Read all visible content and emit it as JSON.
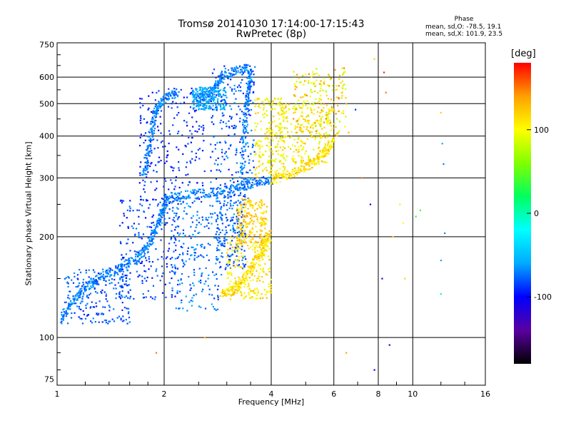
{
  "chart_data": {
    "type": "scatter",
    "title": "Tromsø 20141030 17:14:00-17:15:43",
    "subtitle": "RwPretec (8p)",
    "xlabel": "Frequency [MHz]",
    "ylabel": "Stationary phase Virtual Height [km]",
    "x_scale": "log",
    "y_scale": "log",
    "xlim": [
      1,
      16
    ],
    "ylim": [
      72,
      760
    ],
    "x_ticks": [
      1,
      2,
      4,
      6,
      8,
      10,
      16
    ],
    "x_tick_labels": [
      "1",
      "2",
      "4",
      "6",
      "8",
      "10",
      "16"
    ],
    "y_ticks": [
      75,
      100,
      200,
      300,
      400,
      500,
      600,
      750
    ],
    "y_tick_labels": [
      "75",
      "100",
      "200",
      "300",
      "400",
      "500",
      "600",
      "750"
    ],
    "grid": true,
    "phase_stats": {
      "heading": "Phase",
      "o_mode": "mean, sd,O: -78.5, 19.1",
      "x_mode": "mean, sd,X: 101.9, 23.5"
    },
    "colorbar": {
      "unit": "[deg]",
      "range": [
        -180,
        180
      ],
      "tick_values": [
        100,
        0,
        -100
      ],
      "tick_labels": [
        "100",
        "0",
        "-100"
      ],
      "colors": [
        "#000000",
        "#5a00a0",
        "#0000ff",
        "#00aaff",
        "#00ffff",
        "#00ff60",
        "#80ff00",
        "#ffff00",
        "#ffa000",
        "#ff0000"
      ]
    },
    "traces": [
      {
        "name": "",
        "mode": "O",
        "points": [
          [
            1.02,
            112
          ],
          [
            1.1,
            128
          ],
          [
            1.2,
            140
          ],
          [
            1.3,
            150
          ],
          [
            1.45,
            158
          ],
          [
            1.6,
            168
          ],
          [
            1.75,
            180
          ],
          [
            1.85,
            200
          ],
          [
            1.95,
            225
          ],
          [
            2.0,
            250
          ],
          [
            2.05,
            262
          ]
        ]
      },
      {
        "name": "",
        "mode": "O",
        "points": [
          [
            2.1,
            265
          ],
          [
            2.4,
            268
          ],
          [
            2.8,
            272
          ],
          [
            3.2,
            280
          ],
          [
            3.6,
            290
          ],
          [
            4.0,
            296
          ]
        ]
      },
      {
        "name": "",
        "mode": "X",
        "points": [
          [
            4.0,
            296
          ],
          [
            4.4,
            305
          ],
          [
            4.9,
            320
          ],
          [
            5.3,
            335
          ],
          [
            5.7,
            360
          ],
          [
            6.0,
            390
          ]
        ]
      },
      {
        "name": "",
        "mode": "O",
        "points": [
          [
            1.75,
            300
          ],
          [
            1.8,
            360
          ],
          [
            1.85,
            420
          ],
          [
            1.9,
            480
          ],
          [
            2.0,
            520
          ],
          [
            2.2,
            540
          ]
        ]
      },
      {
        "name": "",
        "mode": "O",
        "points": [
          [
            2.5,
            520
          ],
          [
            2.7,
            540
          ],
          [
            2.9,
            600
          ],
          [
            3.2,
            630
          ],
          [
            3.5,
            640
          ]
        ]
      },
      {
        "name": "",
        "mode": "O",
        "points": [
          [
            3.3,
            280
          ],
          [
            3.35,
            380
          ],
          [
            3.4,
            480
          ],
          [
            3.45,
            560
          ],
          [
            3.5,
            620
          ]
        ]
      },
      {
        "name": "",
        "mode": "X",
        "points": [
          [
            2.9,
            135
          ],
          [
            3.1,
            138
          ],
          [
            3.3,
            145
          ],
          [
            3.5,
            160
          ],
          [
            3.7,
            175
          ],
          [
            3.85,
            190
          ],
          [
            3.95,
            205
          ]
        ]
      }
    ],
    "clusters": [
      {
        "x": [
          1.05,
          1.6
        ],
        "y": [
          110,
          160
        ],
        "phase": [
          -95,
          -65
        ]
      },
      {
        "x": [
          1.5,
          2.2
        ],
        "y": [
          130,
          260
        ],
        "phase": [
          -100,
          -70
        ]
      },
      {
        "x": [
          1.7,
          2.6
        ],
        "y": [
          250,
          560
        ],
        "phase": [
          -105,
          -80
        ]
      },
      {
        "x": [
          2.1,
          2.9
        ],
        "y": [
          120,
          260
        ],
        "phase": [
          -90,
          -55
        ]
      },
      {
        "x": [
          2.4,
          3.0
        ],
        "y": [
          480,
          560
        ],
        "phase": [
          -70,
          -50
        ]
      },
      {
        "x": [
          2.7,
          3.6
        ],
        "y": [
          260,
          650
        ],
        "phase": [
          -100,
          -60
        ]
      },
      {
        "x": [
          2.8,
          3.4
        ],
        "y": [
          160,
          270
        ],
        "phase": [
          -95,
          -60
        ]
      },
      {
        "x": [
          3.6,
          4.4
        ],
        "y": [
          300,
          520
        ],
        "phase": [
          80,
          130
        ]
      },
      {
        "x": [
          4.2,
          5.8
        ],
        "y": [
          330,
          500
        ],
        "phase": [
          80,
          130
        ]
      },
      {
        "x": [
          3.0,
          4.0
        ],
        "y": [
          130,
          200
        ],
        "phase": [
          90,
          130
        ]
      },
      {
        "x": [
          3.2,
          3.9
        ],
        "y": [
          190,
          260
        ],
        "phase": [
          100,
          140
        ]
      },
      {
        "x": [
          4.6,
          6.5
        ],
        "y": [
          400,
          640
        ],
        "phase": [
          70,
          150
        ]
      }
    ],
    "sparse_points": [
      [
        6.6,
        410,
        130
      ],
      [
        6.9,
        480,
        -90
      ],
      [
        7.2,
        300,
        150
      ],
      [
        7.6,
        250,
        -110
      ],
      [
        8.4,
        540,
        150
      ],
      [
        8.2,
        150,
        -120
      ],
      [
        8.6,
        95,
        -110
      ],
      [
        8.8,
        200,
        120
      ],
      [
        9.2,
        250,
        90
      ],
      [
        9.4,
        220,
        100
      ],
      [
        10.2,
        230,
        30
      ],
      [
        10.5,
        240,
        40
      ],
      [
        12.0,
        470,
        120
      ],
      [
        12.1,
        380,
        -60
      ],
      [
        12.2,
        330,
        -70
      ],
      [
        12.0,
        170,
        -60
      ],
      [
        12.3,
        205,
        -70
      ],
      [
        12.0,
        135,
        0
      ],
      [
        7.8,
        80,
        -100
      ],
      [
        6.5,
        90,
        140
      ],
      [
        7.8,
        680,
        120
      ],
      [
        8.3,
        620,
        170
      ],
      [
        9.5,
        150,
        120
      ],
      [
        2.6,
        100,
        130
      ],
      [
        1.9,
        90,
        150
      ]
    ]
  }
}
